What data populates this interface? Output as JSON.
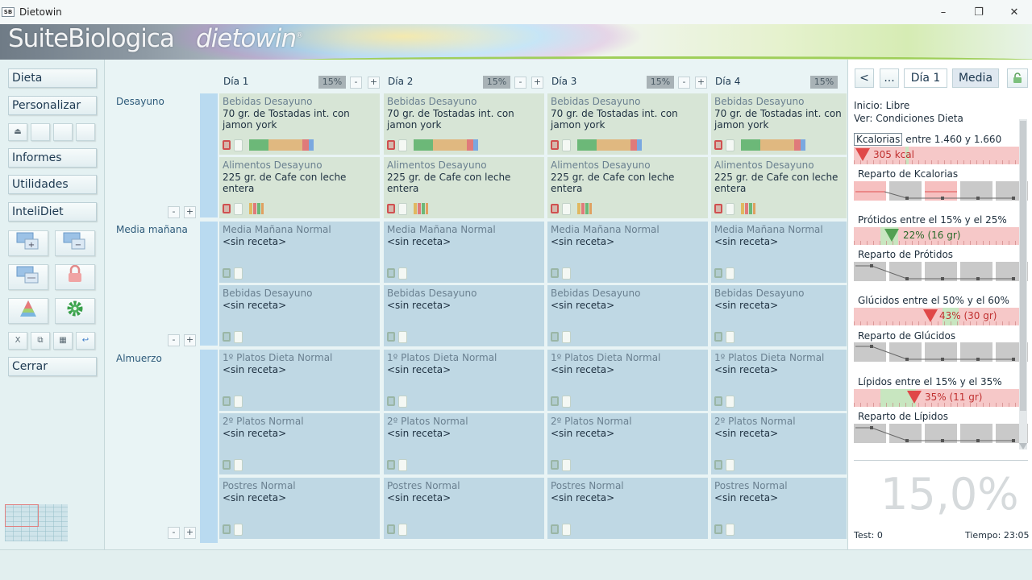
{
  "window": {
    "title": "Dietowin",
    "icon_text": "SB",
    "controls": {
      "minimize": "–",
      "maximize": "❐",
      "close": "✕"
    }
  },
  "banner": {
    "brand": "SuiteBiologica",
    "product": "dietowin",
    "reg": "®"
  },
  "sidebar": {
    "buttons": [
      {
        "label": "Dieta"
      },
      {
        "label": "Personalizar"
      },
      {
        "label": "Informes"
      },
      {
        "label": "Utilidades"
      },
      {
        "label": "InteliDiet"
      },
      {
        "label": "Cerrar"
      }
    ],
    "small_icons": [
      "print-icon",
      "blank-icon",
      "blank-icon",
      "blank-icon"
    ],
    "edit_icons": [
      {
        "name": "cut-icon",
        "glyph": "X"
      },
      {
        "name": "copy-icon",
        "glyph": "⧉"
      },
      {
        "name": "paste-icon",
        "glyph": "▦"
      },
      {
        "name": "undo-icon",
        "glyph": "↩"
      }
    ]
  },
  "planner": {
    "days": [
      {
        "label": "Día 1",
        "pct": "15%"
      },
      {
        "label": "Día 2",
        "pct": "15%"
      },
      {
        "label": "Día 3",
        "pct": "15%"
      },
      {
        "label": "Día 4",
        "pct": "15%"
      }
    ],
    "pm": {
      "minus": "-",
      "plus": "+"
    },
    "meals": [
      "Desayuno",
      "Media mañana",
      "Almuerzo"
    ],
    "rows": [
      {
        "cat": "Bebidas Desayuno",
        "recipe": "70 gr. de Tostadas int. con jamon york",
        "type": "green"
      },
      {
        "cat": "Alimentos Desayuno",
        "recipe": "225 gr. de Cafe con leche entera",
        "type": "green"
      },
      {
        "cat": "Media Mañana Normal",
        "recipe": "<sin receta>",
        "type": "blue"
      },
      {
        "cat": "Bebidas Desayuno",
        "recipe": "<sin receta>",
        "type": "blue"
      },
      {
        "cat": "1º Platos Dieta Normal",
        "recipe": "<sin receta>",
        "type": "blue"
      },
      {
        "cat": "2º Platos Normal",
        "recipe": "<sin receta>",
        "type": "blue"
      },
      {
        "cat": "Postres Normal",
        "recipe": "<sin receta>",
        "type": "blue"
      }
    ]
  },
  "panel": {
    "nav": {
      "prev": "<",
      "more": "...",
      "day": "Día 1",
      "mode": "Media"
    },
    "inicio": "Inicio: Libre",
    "ver": "Ver: Condiciones Dieta",
    "kcal": {
      "tag": "Kcalorias",
      "range": "entre 1.460 y 1.660",
      "value": "305 kcal"
    },
    "reparto_kcal": "Reparto de Kcalorias",
    "protidos": {
      "label": "Prótidos entre el 15% y el 25%",
      "value": "22% (16 gr)"
    },
    "reparto_protidos": "Reparto de Prótidos",
    "glucidos": {
      "label": "Glúcidos entre el 50% y el 60%",
      "value": "43% (30 gr)"
    },
    "reparto_glucidos": "Reparto de Glúcidos",
    "lipidos": {
      "label": "Lípidos entre el 15% y el 35%",
      "value": "35% (11 gr)"
    },
    "reparto_lipidos": "Reparto de Lípidos",
    "big_pct": "15,0%",
    "test": "Test: 0",
    "tiempo": "Tiempo: 23:05"
  },
  "colors": {
    "green_cell": "#d7e5d6",
    "blue_cell": "#bfd8e4",
    "red_range": "#f6c8c8",
    "green_range": "#c8e6c0",
    "accent_red": "#e04848"
  }
}
